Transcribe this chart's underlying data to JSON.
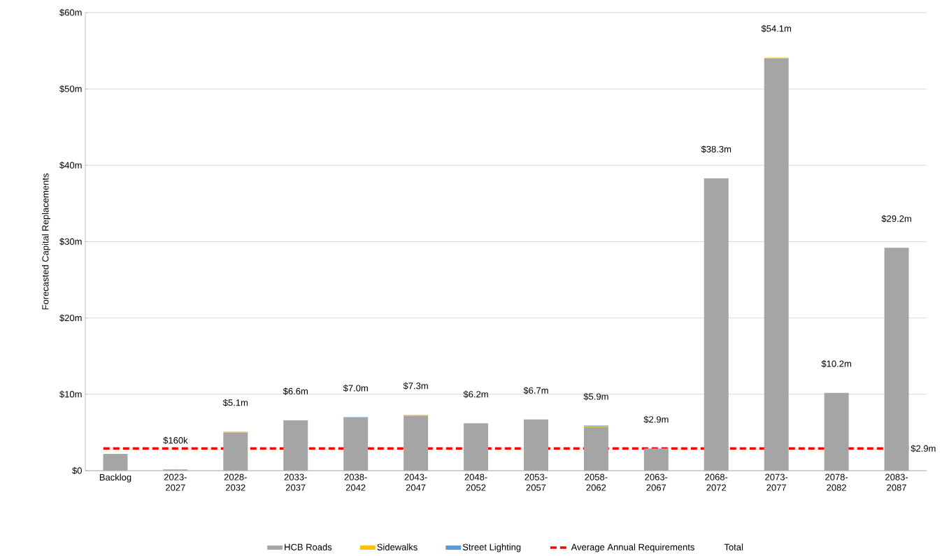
{
  "chart_data": {
    "type": "bar",
    "stacked": true,
    "ylabel": "Forecasted Capital Replacements",
    "categories": [
      "Backlog",
      "2023-2027",
      "2028-2032",
      "2033-2037",
      "2038-2042",
      "2043-2047",
      "2048-2052",
      "2053-2057",
      "2058-2062",
      "2063-2067",
      "2068-2072",
      "2073-2077",
      "2078-2082",
      "2083-2087"
    ],
    "series": [
      {
        "name": "HCB Roads",
        "color": "#a5a5a5",
        "values": [
          2.2,
          0.16,
          5.0,
          6.6,
          6.9,
          7.2,
          6.2,
          6.7,
          5.7,
          2.9,
          38.3,
          54.0,
          10.2,
          29.2
        ]
      },
      {
        "name": "Sidewalks",
        "color": "#ffc000",
        "values": [
          0,
          0,
          0.1,
          0,
          0,
          0.1,
          0,
          0,
          0.1,
          0,
          0,
          0.1,
          0,
          0
        ]
      },
      {
        "name": "Street Lighting",
        "color": "#5b9bd5",
        "values": [
          0,
          0,
          0,
          0,
          0.1,
          0,
          0,
          0,
          0.1,
          0,
          0,
          0,
          0,
          0
        ]
      }
    ],
    "totals": [
      null,
      "$160k",
      "$5.1m",
      "$6.6m",
      "$7.0m",
      "$7.3m",
      "$6.2m",
      "$6.7m",
      "$5.9m",
      "$2.9m",
      "$38.3m",
      "$54.1m",
      "$10.2m",
      "$29.2m"
    ],
    "ref_lines": [
      {
        "axis": "y",
        "value": 2.9,
        "label": "Average Annual Requirements",
        "color": "#ff0000",
        "line_style": "dashed"
      }
    ],
    "annotations": [
      {
        "text": "$2.9m",
        "x": "2083-2087",
        "y": 2.9
      },
      "Total"
    ],
    "ylim": [
      0,
      60
    ],
    "yticks": [
      {
        "value": 0,
        "label": "$0"
      },
      {
        "value": 10,
        "label": "$10m"
      },
      {
        "value": 20,
        "label": "$20m"
      },
      {
        "value": 30,
        "label": "$30m"
      },
      {
        "value": 40,
        "label": "$40m"
      },
      {
        "value": 50,
        "label": "$50m"
      },
      {
        "value": 60,
        "label": "$60m"
      }
    ],
    "grid": "y",
    "legend": "bottom"
  }
}
